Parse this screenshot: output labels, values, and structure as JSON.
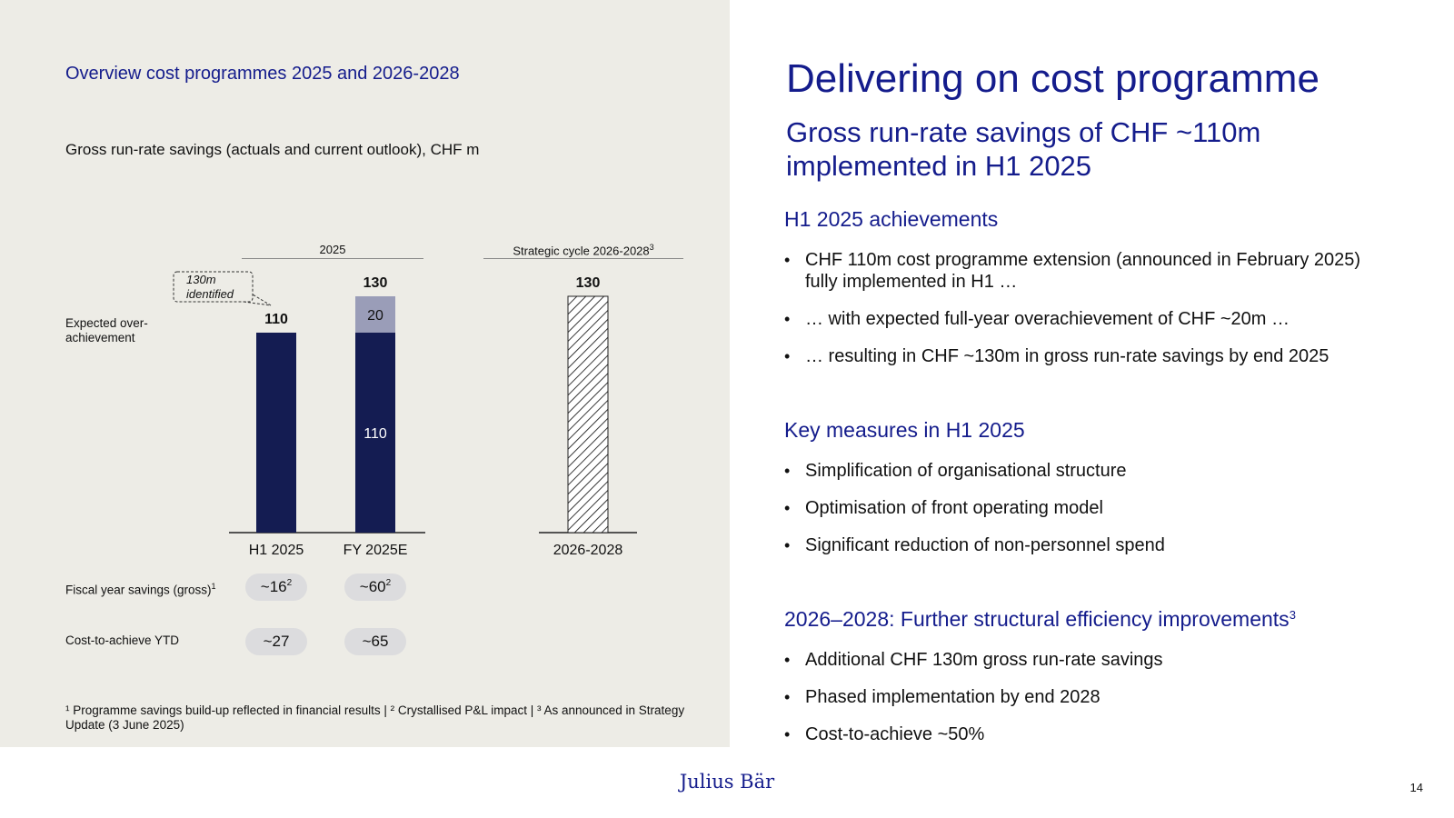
{
  "left": {
    "panel_title": "Overview cost programmes 2025 and 2026-2028",
    "chart_subtitle": "Gross run-rate savings (actuals and current outlook), CHF m",
    "group_2025": "2025",
    "group_strategic": "Strategic cycle 2026-2028",
    "group_strategic_sup": "3",
    "callout": "130m identified",
    "overachievement_label": "Expected over-achievement",
    "fiscal_label": "Fiscal year savings (gross)",
    "fiscal_label_sup": "1",
    "cost_label": "Cost-to-achieve YTD",
    "fiscal_values": [
      {
        "value": "~16",
        "sup": "2"
      },
      {
        "value": "~60",
        "sup": "2"
      }
    ],
    "cost_values": [
      "~27",
      "~65"
    ],
    "footnote": "¹ Programme savings build-up reflected in financial results | ² Crystallised P&L impact | ³ As announced in Strategy Update (3 June 2025)"
  },
  "chart_data": {
    "type": "bar",
    "title": "Gross run-rate savings (actuals and current outlook), CHF m",
    "categories": [
      "H1 2025",
      "FY 2025E",
      "2026-2028"
    ],
    "series": [
      {
        "name": "Savings",
        "values": [
          110,
          110,
          130
        ]
      },
      {
        "name": "Expected over-achievement",
        "values": [
          0,
          20,
          0
        ]
      }
    ],
    "totals": [
      110,
      130,
      130
    ],
    "segment_labels": [
      "",
      "110",
      ""
    ],
    "overachievement_labels": [
      "",
      "20",
      ""
    ],
    "annotation": "130m identified",
    "hatched": [
      false,
      false,
      true
    ],
    "ylim": [
      0,
      130
    ],
    "colors": {
      "base": "#141c52",
      "over": "#9a9db8",
      "hatch": "#222222"
    }
  },
  "right": {
    "title": "Delivering on cost programme",
    "subtitle": "Gross run-rate savings of CHF ~110m implemented in H1 2025",
    "sections": [
      {
        "heading": "H1 2025 achievements",
        "sup": "",
        "bullets": [
          "CHF 110m cost programme extension (announced in February 2025) fully implemented in H1 …",
          "… with expected full-year overachievement of CHF ~20m …",
          "… resulting in CHF ~130m in gross run-rate savings by end 2025"
        ]
      },
      {
        "heading": "Key measures in H1 2025",
        "sup": "",
        "bullets": [
          "Simplification of organisational structure",
          "Optimisation of front operating model",
          "Significant reduction of non-personnel spend"
        ]
      },
      {
        "heading": "2026–2028: Further structural efficiency improvements",
        "sup": "3",
        "bullets": [
          "Additional CHF 130m gross run-rate savings",
          "Phased implementation by end 2028",
          "Cost-to-achieve ~50%"
        ]
      }
    ]
  },
  "footer": {
    "logo": "Julius Bär",
    "page_number": "14"
  },
  "colors": {
    "accent": "#141c8c",
    "panel_bg": "#edece6"
  }
}
